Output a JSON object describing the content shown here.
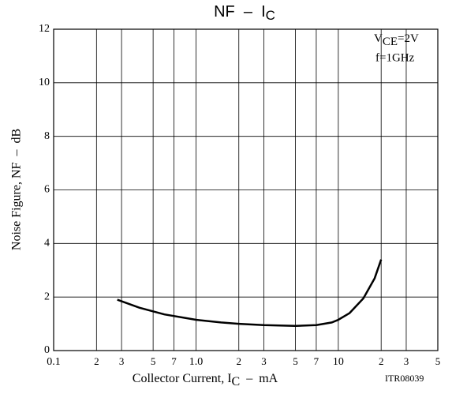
{
  "chart_data": {
    "type": "line",
    "title": [
      "NF  –  I",
      "C"
    ],
    "xlabel": [
      "Collector Current, I",
      "C",
      "  –  mA"
    ],
    "ylabel": "Noise Figure, NF  –  dB",
    "annotations": [
      [
        "V",
        "CE",
        "=2V"
      ],
      [
        "f=1GHz"
      ],
      [
        "ITR08039"
      ]
    ],
    "xscale": "log",
    "xlim": [
      0.1,
      50
    ],
    "ylim": [
      0,
      12
    ],
    "xticks": [
      0.1,
      {
        "value": 0.2,
        "label": "2"
      },
      {
        "value": 0.3,
        "label": "3"
      },
      {
        "value": 0.5,
        "label": "5"
      },
      {
        "value": 0.7,
        "label": "7"
      },
      {
        "value": 1,
        "label": "1.0"
      },
      {
        "value": 2,
        "label": "2"
      },
      {
        "value": 3,
        "label": "3"
      },
      {
        "value": 5,
        "label": "5"
      },
      {
        "value": 7,
        "label": "7"
      },
      10,
      {
        "value": 20,
        "label": "2"
      },
      {
        "value": 30,
        "label": "3"
      },
      {
        "value": 50,
        "label": "5"
      }
    ],
    "yticks": [
      0,
      2,
      4,
      6,
      8,
      10,
      12
    ],
    "grid": true,
    "series": [
      {
        "color": "#000000",
        "x": [
          0.28,
          0.4,
          0.6,
          1,
          1.5,
          2,
          3,
          5,
          7,
          9,
          10,
          12,
          15,
          18,
          20
        ],
        "values": [
          1.9,
          1.6,
          1.35,
          1.15,
          1.05,
          1,
          0.95,
          0.92,
          0.95,
          1.05,
          1.15,
          1.4,
          1.95,
          2.7,
          3.4
        ]
      }
    ]
  }
}
